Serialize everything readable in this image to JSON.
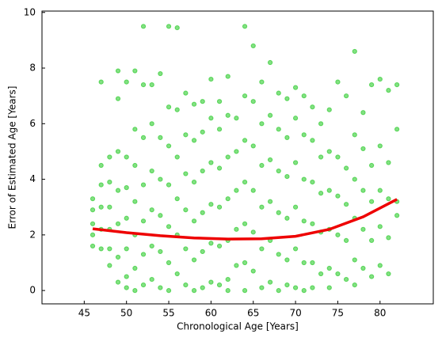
{
  "chart_data": {
    "type": "scatter",
    "xlabel": "Chronological Age [Years]",
    "ylabel": "Error of Estimated Age [Years]",
    "xlim": [
      40,
      86.3
    ],
    "ylim": [
      -0.48,
      10.05
    ],
    "xticks": [
      45,
      50,
      55,
      60,
      65,
      70,
      75,
      80
    ],
    "yticks": [
      0,
      2,
      4,
      6,
      8,
      10
    ],
    "tick_direction": "in",
    "series": [
      {
        "type": "scatter",
        "color": "#2ecc2e",
        "x": [
          46,
          46,
          46,
          46,
          46,
          47,
          47,
          47,
          47,
          47,
          47,
          48,
          48,
          48,
          48,
          48,
          48,
          49,
          49,
          49,
          49,
          49,
          49,
          49,
          50,
          50,
          50,
          50,
          50,
          50,
          50,
          51,
          51,
          51,
          51,
          51,
          51,
          51,
          52,
          52,
          52,
          52,
          52,
          52,
          52,
          53,
          53,
          53,
          53,
          53,
          53,
          54,
          54,
          54,
          54,
          54,
          54,
          55,
          55,
          55,
          55,
          55,
          55,
          55,
          56,
          56,
          56,
          56,
          56,
          56,
          57,
          57,
          57,
          57,
          57,
          57,
          58,
          58,
          58,
          58,
          58,
          58,
          59,
          59,
          59,
          59,
          59,
          59,
          60,
          60,
          60,
          60,
          60,
          60,
          61,
          61,
          61,
          61,
          61,
          61,
          62,
          62,
          62,
          62,
          62,
          62,
          62,
          63,
          63,
          63,
          63,
          63,
          64,
          64,
          64,
          64,
          64,
          64,
          64,
          65,
          65,
          65,
          65,
          65,
          65,
          66,
          66,
          66,
          66,
          66,
          66,
          67,
          67,
          67,
          67,
          67,
          67,
          68,
          68,
          68,
          68,
          68,
          68,
          69,
          69,
          69,
          69,
          69,
          69,
          70,
          70,
          70,
          70,
          70,
          70,
          71,
          71,
          71,
          71,
          71,
          71,
          72,
          72,
          72,
          72,
          72,
          72,
          73,
          73,
          73,
          73,
          73,
          74,
          74,
          74,
          74,
          74,
          74,
          75,
          75,
          75,
          75,
          75,
          76,
          76,
          76,
          76,
          76,
          77,
          77,
          77,
          77,
          77,
          77,
          78,
          78,
          78,
          78,
          78,
          79,
          79,
          79,
          79,
          79,
          80,
          80,
          80,
          80,
          80,
          81,
          81,
          81,
          81,
          81,
          82,
          82,
          82,
          82
        ],
        "values": [
          3.3,
          2.9,
          2.4,
          2.0,
          1.6,
          7.5,
          4.5,
          3.8,
          3.0,
          2.2,
          1.5,
          4.8,
          3.9,
          3.0,
          2.2,
          1.5,
          0.9,
          7.9,
          6.9,
          5.0,
          3.6,
          2.4,
          1.2,
          0.3,
          7.5,
          4.8,
          3.7,
          2.6,
          1.5,
          0.5,
          0.1,
          7.9,
          5.8,
          4.5,
          3.2,
          2.0,
          0.8,
          0.0,
          9.5,
          7.4,
          5.5,
          3.8,
          2.5,
          1.3,
          0.2,
          7.4,
          6.0,
          4.3,
          2.9,
          1.6,
          0.4,
          7.8,
          5.5,
          4.0,
          2.7,
          1.4,
          0.1,
          9.5,
          6.6,
          5.2,
          3.8,
          2.3,
          1.0,
          0.0,
          9.45,
          6.5,
          4.8,
          3.3,
          2.0,
          0.6,
          7.1,
          5.6,
          4.2,
          2.9,
          1.5,
          0.2,
          6.7,
          5.4,
          3.9,
          2.5,
          1.1,
          0.0,
          6.8,
          5.7,
          4.3,
          2.8,
          1.4,
          0.1,
          7.6,
          6.2,
          4.6,
          3.1,
          1.7,
          0.3,
          6.8,
          5.8,
          4.4,
          3.0,
          1.6,
          0.2,
          7.7,
          6.3,
          4.8,
          3.3,
          1.8,
          0.4,
          0.0,
          6.2,
          5.0,
          3.6,
          2.2,
          0.9,
          9.5,
          7.0,
          5.4,
          3.9,
          2.4,
          1.0,
          0.0,
          8.8,
          6.8,
          5.2,
          3.6,
          2.1,
          0.7,
          7.5,
          6.0,
          4.5,
          3.0,
          1.5,
          0.1,
          8.2,
          6.3,
          4.7,
          3.2,
          1.8,
          0.3,
          7.1,
          5.8,
          4.3,
          2.8,
          1.3,
          0.0,
          6.9,
          5.5,
          4.1,
          2.6,
          1.1,
          0.2,
          7.3,
          6.2,
          4.6,
          3.0,
          1.5,
          0.1,
          7.0,
          5.6,
          4.0,
          2.5,
          1.0,
          0.0,
          6.6,
          5.4,
          3.9,
          2.4,
          1.0,
          0.1,
          6.0,
          4.8,
          3.5,
          2.1,
          0.6,
          6.5,
          5.0,
          3.6,
          2.2,
          0.8,
          0.1,
          7.5,
          4.8,
          3.4,
          2.0,
          0.6,
          7.0,
          4.4,
          3.1,
          1.8,
          0.4,
          8.6,
          5.6,
          4.0,
          2.6,
          1.1,
          0.2,
          6.4,
          5.1,
          3.6,
          2.2,
          0.8,
          7.4,
          4.5,
          3.2,
          1.8,
          0.5,
          7.6,
          5.2,
          3.6,
          2.3,
          0.9,
          7.2,
          4.6,
          3.3,
          1.9,
          0.6,
          7.4,
          5.8,
          3.2,
          2.7
        ]
      },
      {
        "type": "line",
        "color": "#ee0000",
        "x": [
          46,
          50,
          54,
          58,
          62,
          66,
          70,
          74,
          78,
          82
        ],
        "values": [
          2.22,
          2.08,
          1.97,
          1.89,
          1.85,
          1.86,
          1.95,
          2.2,
          2.65,
          3.28
        ]
      }
    ]
  }
}
